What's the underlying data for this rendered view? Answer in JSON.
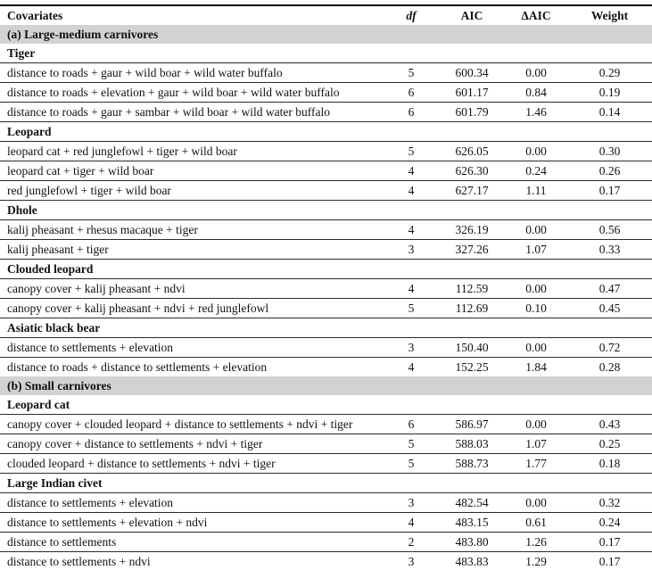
{
  "colors": {
    "band_background": "#d2d2d2",
    "rule": "#000000",
    "row_line": "#2b2b2b",
    "text": "#111111"
  },
  "columns": {
    "covariates": "Covariates",
    "df": "df",
    "aic": "AIC",
    "delta_aic": "ΔAIC",
    "weight": "Weight"
  },
  "sections": [
    {
      "kind": "band",
      "label": "(a) Large-medium carnivores"
    },
    {
      "kind": "species",
      "label": "Tiger",
      "models": [
        {
          "covariates": "distance to roads + gaur + wild boar + wild water buffalo",
          "df": "5",
          "aic": "600.34",
          "delta_aic": "0.00",
          "weight": "0.29"
        },
        {
          "covariates": "distance to roads + elevation + gaur + wild boar + wild water buffalo",
          "df": "6",
          "aic": "601.17",
          "delta_aic": "0.84",
          "weight": "0.19"
        },
        {
          "covariates": "distance to roads + gaur + sambar + wild boar + wild water buffalo",
          "df": "6",
          "aic": "601.79",
          "delta_aic": "1.46",
          "weight": "0.14"
        }
      ]
    },
    {
      "kind": "species",
      "label": "Leopard",
      "models": [
        {
          "covariates": "leopard cat + red junglefowl + tiger + wild boar",
          "df": "5",
          "aic": "626.05",
          "delta_aic": "0.00",
          "weight": "0.30"
        },
        {
          "covariates": "leopard cat + tiger + wild boar",
          "df": "4",
          "aic": "626.30",
          "delta_aic": "0.24",
          "weight": "0.26"
        },
        {
          "covariates": "red junglefowl + tiger + wild boar",
          "df": "4",
          "aic": "627.17",
          "delta_aic": "1.11",
          "weight": "0.17"
        }
      ]
    },
    {
      "kind": "species",
      "label": "Dhole",
      "models": [
        {
          "covariates": "kalij pheasant + rhesus macaque + tiger",
          "df": "4",
          "aic": "326.19",
          "delta_aic": "0.00",
          "weight": "0.56"
        },
        {
          "covariates": "kalij pheasant + tiger",
          "df": "3",
          "aic": "327.26",
          "delta_aic": "1.07",
          "weight": "0.33"
        }
      ]
    },
    {
      "kind": "species",
      "label": "Clouded leopard",
      "models": [
        {
          "covariates": "canopy cover + kalij pheasant + ndvi",
          "df": "4",
          "aic": "112.59",
          "delta_aic": "0.00",
          "weight": "0.47"
        },
        {
          "covariates": "canopy cover + kalij pheasant + ndvi + red junglefowl",
          "df": "5",
          "aic": "112.69",
          "delta_aic": "0.10",
          "weight": "0.45"
        }
      ]
    },
    {
      "kind": "species",
      "label": "Asiatic black bear",
      "models": [
        {
          "covariates": "distance to settlements + elevation",
          "df": "3",
          "aic": "150.40",
          "delta_aic": "0.00",
          "weight": "0.72"
        },
        {
          "covariates": "distance to roads + distance to settlements + elevation",
          "df": "4",
          "aic": "152.25",
          "delta_aic": "1.84",
          "weight": "0.28"
        }
      ]
    },
    {
      "kind": "band",
      "label": "(b) Small carnivores"
    },
    {
      "kind": "species",
      "label": "Leopard cat",
      "models": [
        {
          "covariates": "canopy cover + clouded leopard + distance to settlements + ndvi + tiger",
          "df": "6",
          "aic": "586.97",
          "delta_aic": "0.00",
          "weight": "0.43"
        },
        {
          "covariates": "canopy cover + distance to settlements + ndvi + tiger",
          "df": "5",
          "aic": "588.03",
          "delta_aic": "1.07",
          "weight": "0.25"
        },
        {
          "covariates": "clouded leopard + distance to settlements + ndvi + tiger",
          "df": "5",
          "aic": "588.73",
          "delta_aic": "1.77",
          "weight": "0.18"
        }
      ]
    },
    {
      "kind": "species",
      "label": "Large Indian civet",
      "models": [
        {
          "covariates": "distance to settlements + elevation",
          "df": "3",
          "aic": "482.54",
          "delta_aic": "0.00",
          "weight": "0.32"
        },
        {
          "covariates": "distance to settlements + elevation + ndvi",
          "df": "4",
          "aic": "483.15",
          "delta_aic": "0.61",
          "weight": "0.24"
        },
        {
          "covariates": "distance to settlements",
          "df": "2",
          "aic": "483.80",
          "delta_aic": "1.26",
          "weight": "0.17"
        },
        {
          "covariates": "distance to settlements + ndvi",
          "df": "3",
          "aic": "483.83",
          "delta_aic": "1.29",
          "weight": "0.17"
        }
      ]
    }
  ]
}
